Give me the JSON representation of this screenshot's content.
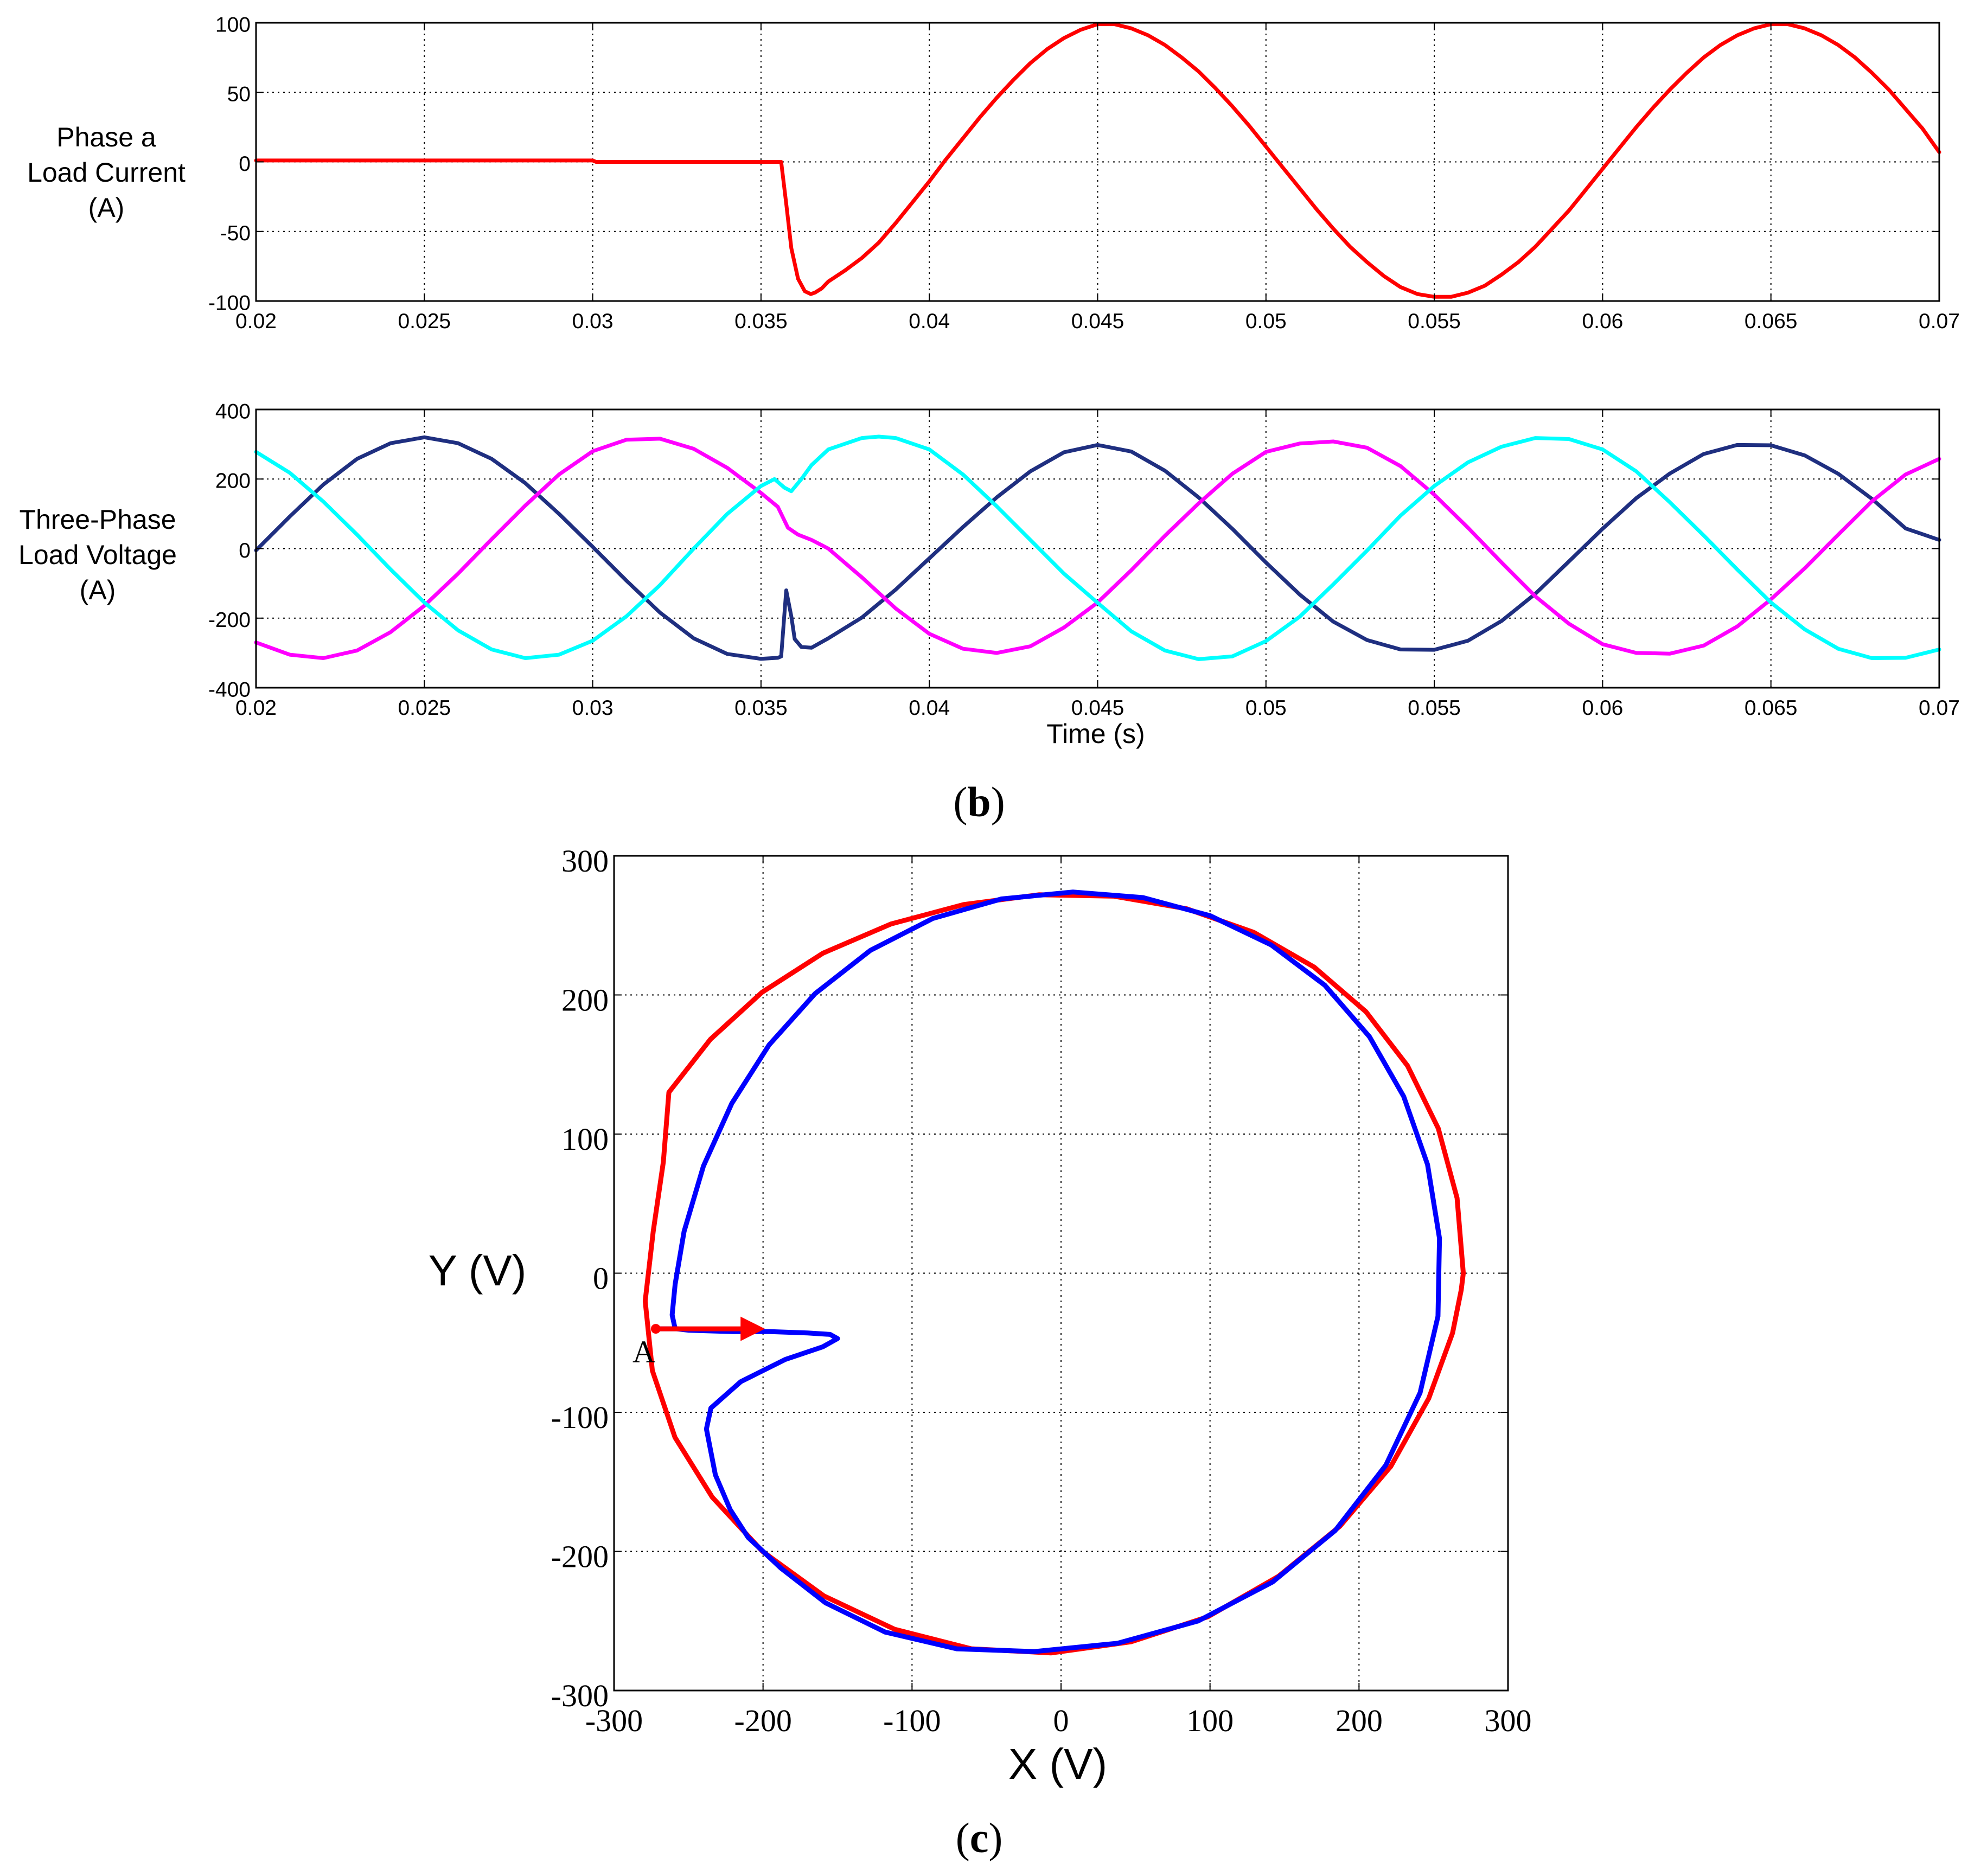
{
  "panel_labels": {
    "b": "(b)",
    "c": "(c)",
    "b_letter": "b",
    "c_letter": "c"
  },
  "chart_data": [
    {
      "id": "phase-a-current",
      "type": "line",
      "title": "",
      "ylabel": [
        "Phase a",
        "Load Current",
        "(A)"
      ],
      "xlabel": "",
      "xlim": [
        0.02,
        0.07
      ],
      "ylim": [
        -100,
        100
      ],
      "xticks": [
        0.02,
        0.025,
        0.03,
        0.035,
        0.04,
        0.045,
        0.05,
        0.055,
        0.06,
        0.065,
        0.07
      ],
      "xtick_labels": [
        "0.02",
        "0.025",
        "0.03",
        "0.035",
        "0.04",
        "0.045",
        "0.05",
        "0.055",
        "0.06",
        "0.065",
        "0.07"
      ],
      "yticks": [
        -100,
        -50,
        0,
        50,
        100
      ],
      "ytick_labels": [
        "-100",
        "-50",
        "0",
        "50",
        "100"
      ],
      "grid": true,
      "series": [
        {
          "color": "#ff0000",
          "x": [
            0.02,
            0.03,
            0.0301,
            0.0356,
            0.03575,
            0.0359,
            0.0361,
            0.0363,
            0.03648,
            0.0366,
            0.0368,
            0.037,
            0.0375,
            0.038,
            0.0385,
            0.039,
            0.0395,
            0.04,
            0.0405,
            0.041,
            0.0415,
            0.042,
            0.0425,
            0.043,
            0.0435,
            0.044,
            0.0445,
            0.045,
            0.0455,
            0.046,
            0.0465,
            0.047,
            0.0475,
            0.048,
            0.0485,
            0.049,
            0.0495,
            0.05,
            0.0505,
            0.051,
            0.0515,
            0.052,
            0.0525,
            0.053,
            0.0535,
            0.054,
            0.0545,
            0.055,
            0.0555,
            0.056,
            0.0565,
            0.057,
            0.0575,
            0.058,
            0.0585,
            0.059,
            0.0595,
            0.06,
            0.0605,
            0.061,
            0.0615,
            0.062,
            0.0625,
            0.063,
            0.0635,
            0.064,
            0.0645,
            0.065,
            0.0655,
            0.066,
            0.0665,
            0.067,
            0.0675,
            0.068,
            0.0685,
            0.069,
            0.0695,
            0.07
          ],
          "y": [
            1,
            1,
            0,
            0,
            -30,
            -62,
            -84,
            -93,
            -95,
            -94,
            -91,
            -86,
            -78,
            -69,
            -58,
            -44,
            -29,
            -14,
            2,
            17,
            32,
            46,
            59,
            71,
            81,
            89,
            95,
            99,
            99,
            96,
            91,
            84,
            75,
            65,
            53,
            40,
            26,
            11,
            -4,
            -19,
            -34,
            -48,
            -61,
            -72,
            -82,
            -90,
            -95,
            -97,
            -97,
            -94,
            -89,
            -81,
            -72,
            -61,
            -48,
            -35,
            -20,
            -5,
            10,
            25,
            39,
            52,
            64,
            75,
            84,
            91,
            96,
            99,
            99,
            96,
            91,
            84,
            75,
            64,
            52,
            38,
            24,
            7
          ]
        }
      ]
    },
    {
      "id": "three-phase-voltage",
      "type": "line",
      "title": "",
      "ylabel": [
        "Three-Phase",
        "Load Voltage",
        "(A)"
      ],
      "xlabel": "Time (s)",
      "xlim": [
        0.02,
        0.07
      ],
      "ylim": [
        -400,
        400
      ],
      "xticks": [
        0.02,
        0.025,
        0.03,
        0.035,
        0.04,
        0.045,
        0.05,
        0.055,
        0.06,
        0.065,
        0.07
      ],
      "xtick_labels": [
        "0.02",
        "0.025",
        "0.03",
        "0.035",
        "0.04",
        "0.045",
        "0.05",
        "0.055",
        "0.06",
        "0.065",
        "0.07"
      ],
      "yticks": [
        -400,
        -200,
        0,
        200,
        400
      ],
      "ytick_labels": [
        "-400",
        "-200",
        "0",
        "200",
        "400"
      ],
      "grid": true,
      "series": [
        {
          "color": "#1f2f80",
          "x": [
            0.02,
            0.021,
            0.022,
            0.023,
            0.024,
            0.025,
            0.026,
            0.027,
            0.028,
            0.029,
            0.03,
            0.031,
            0.032,
            0.033,
            0.034,
            0.035,
            0.0355,
            0.0356,
            0.03575,
            0.0359,
            0.036,
            0.0362,
            0.0365,
            0.037,
            0.038,
            0.039,
            0.04,
            0.041,
            0.042,
            0.043,
            0.044,
            0.045,
            0.046,
            0.047,
            0.048,
            0.049,
            0.05,
            0.051,
            0.052,
            0.053,
            0.054,
            0.055,
            0.056,
            0.057,
            0.058,
            0.059,
            0.06,
            0.061,
            0.062,
            0.063,
            0.064,
            0.065,
            0.066,
            0.067,
            0.068,
            0.069,
            0.07
          ],
          "y": [
            -5,
            92,
            184,
            258,
            303,
            320,
            303,
            258,
            188,
            100,
            5,
            -92,
            -184,
            -258,
            -303,
            -317,
            -314,
            -310,
            -120,
            -195,
            -260,
            -283,
            -285,
            -258,
            -198,
            -118,
            -28,
            62,
            147,
            222,
            277,
            298,
            279,
            224,
            147,
            57,
            -40,
            -132,
            -210,
            -263,
            -290,
            -291,
            -265,
            -208,
            -130,
            -37,
            57,
            145,
            216,
            272,
            298,
            297,
            268,
            215,
            143,
            58,
            25
          ]
        },
        {
          "color": "#ff00ff",
          "x": [
            0.02,
            0.021,
            0.022,
            0.023,
            0.024,
            0.025,
            0.026,
            0.027,
            0.028,
            0.029,
            0.03,
            0.031,
            0.032,
            0.033,
            0.034,
            0.035,
            0.0355,
            0.0358,
            0.0361,
            0.0365,
            0.037,
            0.038,
            0.039,
            0.04,
            0.041,
            0.042,
            0.043,
            0.044,
            0.045,
            0.046,
            0.047,
            0.048,
            0.049,
            0.05,
            0.051,
            0.052,
            0.053,
            0.054,
            0.055,
            0.056,
            0.057,
            0.058,
            0.059,
            0.06,
            0.061,
            0.062,
            0.063,
            0.064,
            0.065,
            0.066,
            0.067,
            0.068,
            0.069,
            0.07
          ],
          "y": [
            -270,
            -305,
            -315,
            -293,
            -240,
            -164,
            -72,
            27,
            124,
            213,
            280,
            313,
            316,
            287,
            232,
            160,
            120,
            60,
            40,
            25,
            0,
            -83,
            -172,
            -245,
            -288,
            -300,
            -281,
            -227,
            -155,
            -62,
            37,
            130,
            215,
            278,
            302,
            308,
            290,
            237,
            155,
            60,
            -40,
            -137,
            -216,
            -275,
            -300,
            -302,
            -279,
            -224,
            -146,
            -57,
            40,
            136,
            213,
            258
          ]
        },
        {
          "color": "#00ffff",
          "x": [
            0.02,
            0.021,
            0.022,
            0.023,
            0.024,
            0.025,
            0.026,
            0.027,
            0.028,
            0.029,
            0.03,
            0.031,
            0.032,
            0.033,
            0.034,
            0.035,
            0.0354,
            0.0357,
            0.0359,
            0.0362,
            0.0365,
            0.037,
            0.038,
            0.0385,
            0.039,
            0.04,
            0.041,
            0.042,
            0.043,
            0.044,
            0.045,
            0.046,
            0.047,
            0.048,
            0.049,
            0.05,
            0.051,
            0.052,
            0.053,
            0.054,
            0.055,
            0.056,
            0.057,
            0.058,
            0.059,
            0.06,
            0.061,
            0.062,
            0.063,
            0.064,
            0.065,
            0.066,
            0.067,
            0.068,
            0.069,
            0.07
          ],
          "y": [
            278,
            218,
            135,
            40,
            -60,
            -155,
            -235,
            -290,
            -315,
            -305,
            -265,
            -195,
            -105,
            0,
            100,
            180,
            200,
            175,
            165,
            200,
            240,
            285,
            318,
            322,
            318,
            285,
            213,
            122,
            25,
            -72,
            -156,
            -238,
            -293,
            -318,
            -310,
            -266,
            -196,
            -103,
            -6,
            95,
            180,
            248,
            293,
            318,
            315,
            285,
            222,
            133,
            38,
            -60,
            -155,
            -232,
            -288,
            -315,
            -314,
            -290
          ]
        }
      ]
    },
    {
      "id": "xy-trajectory",
      "type": "line",
      "title": "",
      "xlabel": "X (V)",
      "ylabel": "Y (V)",
      "xlim": [
        -300,
        300
      ],
      "ylim": [
        -300,
        300
      ],
      "xticks": [
        -300,
        -200,
        -100,
        0,
        100,
        200,
        300
      ],
      "xtick_labels": [
        "-300",
        "-200",
        "-100",
        "0",
        "100",
        "200",
        "300"
      ],
      "yticks": [
        -300,
        -200,
        -100,
        0,
        100,
        200,
        300
      ],
      "ytick_labels": [
        "-300",
        "-200",
        "-100",
        "0",
        "100",
        "200",
        "300"
      ],
      "grid": true,
      "annotations": [
        {
          "text": "A",
          "x": -272,
          "y": -40
        }
      ],
      "series": [
        {
          "color": "#ff0000",
          "x": [
            270,
            265.8,
            253.2,
            232.6,
            204.6,
            169.9,
            129.4,
            84.2,
            35.6,
            -14.9,
            -65.3,
            -114.2,
            -159.8,
            -200.6,
            -235.4,
            -263.2,
            -266.9,
            -273.7,
            -279.1,
            -274.3,
            -259.1,
            -234.1,
            -200.4,
            -159.1,
            -111.7,
            -60.2,
            -6.6,
            46.9,
            98.5,
            145.8,
            187.1,
            221.3,
            246.8,
            262.8,
            268.6,
            270
          ],
          "y": [
            0,
            54,
            104,
            149,
            188,
            220,
            245,
            262,
            271,
            272,
            265,
            251,
            230,
            202,
            168,
            130,
            80,
            30,
            -20,
            -70,
            -118,
            -161,
            -200,
            -232,
            -256,
            -270,
            -273,
            -265,
            -247,
            -218,
            -182,
            -139,
            -90,
            -43,
            -12,
            0
          ]
        },
        {
          "color": "#0000ff",
          "x": [
            -272,
            -258,
            -250,
            -220,
            -195,
            -170,
            -155,
            -150,
            -160,
            -185,
            -215,
            -235,
            -238,
            -232,
            -222,
            -210,
            -188,
            -158,
            -118,
            -70,
            -18,
            38,
            92,
            142,
            184,
            218,
            241,
            253,
            254,
            246,
            230,
            207,
            177,
            141,
            100,
            55,
            8,
            -40,
            -86,
            -128,
            -165,
            -196,
            -221,
            -240,
            -253,
            -259,
            -261,
            -259,
            -257
          ],
          "y": [
            -40,
            -40,
            -41,
            -42,
            -42,
            -43,
            -44,
            -47,
            -53,
            -62,
            -78,
            -97,
            -112,
            -145,
            -170,
            -190,
            -212,
            -237,
            -258,
            -270,
            -272,
            -266,
            -250,
            -222,
            -185,
            -138,
            -86,
            -31,
            25,
            78,
            127,
            170,
            207,
            236,
            257,
            270,
            274,
            269,
            255,
            232,
            201,
            164,
            122,
            77,
            30,
            -8,
            -30,
            -40,
            -40
          ]
        },
        {
          "color": "#ff0000",
          "role": "arrow",
          "x": [
            -272,
            -202
          ],
          "y": [
            -40,
            -40
          ]
        }
      ]
    }
  ]
}
